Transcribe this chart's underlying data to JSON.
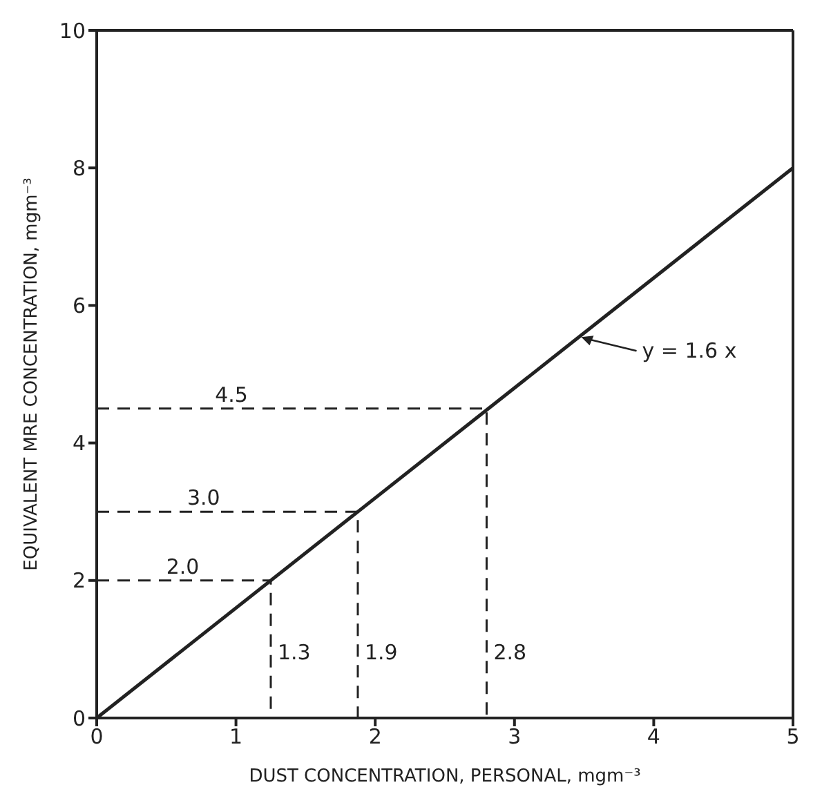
{
  "chart_data": {
    "type": "line",
    "xlabel": "DUST CONCENTRATION, PERSONAL, mgm⁻³",
    "ylabel": "EQUIVALENT MRE CONCENTRATION, mgm⁻³",
    "xlim": [
      0,
      5
    ],
    "ylim": [
      0,
      10
    ],
    "xticks": [
      0,
      1,
      2,
      3,
      4,
      5
    ],
    "yticks": [
      0,
      2,
      4,
      6,
      8,
      10
    ],
    "marker": "none",
    "series": [
      {
        "color": "#222222",
        "line_style": "solid",
        "x": [
          0,
          5
        ],
        "values": [
          0,
          8
        ]
      },
      {
        "color": "#222222",
        "line_style": "dashed",
        "x": [
          0,
          1.25,
          1.25
        ],
        "values": [
          2,
          2,
          0
        ]
      },
      {
        "color": "#222222",
        "line_style": "dashed",
        "x": [
          0,
          1.875,
          1.875
        ],
        "values": [
          3,
          3,
          0
        ]
      },
      {
        "color": "#222222",
        "line_style": "dashed",
        "x": [
          0,
          2.8,
          2.8
        ],
        "values": [
          4.5,
          4.5,
          0
        ]
      }
    ],
    "annotations": [
      {
        "text": "2.0",
        "x": 0.45,
        "y": 2
      },
      {
        "text": "3.0",
        "x": 0.6,
        "y": 3
      },
      {
        "text": "4.5",
        "x": 0.8,
        "y": 4.5
      },
      {
        "text": "1.3",
        "x": 1.25,
        "y": 0.75
      },
      {
        "text": "1.9",
        "x": 1.875,
        "y": 0.75
      },
      {
        "text": "2.8",
        "x": 2.8,
        "y": 0.75
      },
      {
        "text": "y = 1.6 x",
        "x": 3.45,
        "y": 5.52
      }
    ]
  }
}
